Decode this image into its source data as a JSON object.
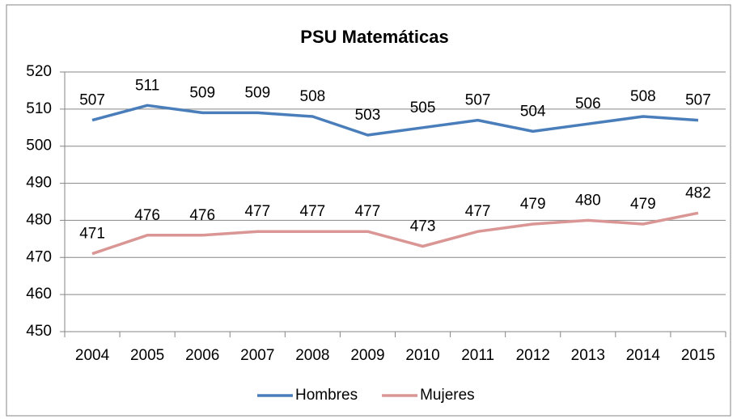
{
  "chart_data": {
    "type": "line",
    "title": "PSU Matemáticas",
    "categories": [
      "2004",
      "2005",
      "2006",
      "2007",
      "2008",
      "2009",
      "2010",
      "2011",
      "2012",
      "2013",
      "2014",
      "2015"
    ],
    "series": [
      {
        "name": "Hombres",
        "color": "#4a7ebb",
        "values": [
          507,
          511,
          509,
          509,
          508,
          503,
          505,
          507,
          504,
          506,
          508,
          507
        ]
      },
      {
        "name": "Mujeres",
        "color": "#d99694",
        "values": [
          471,
          476,
          476,
          477,
          477,
          477,
          473,
          477,
          479,
          480,
          479,
          482
        ]
      }
    ],
    "ylim": [
      450,
      520
    ],
    "yticks": [
      450,
      460,
      470,
      480,
      490,
      500,
      510,
      520
    ],
    "grid": true,
    "legend": "bottom",
    "data_labels": true
  }
}
